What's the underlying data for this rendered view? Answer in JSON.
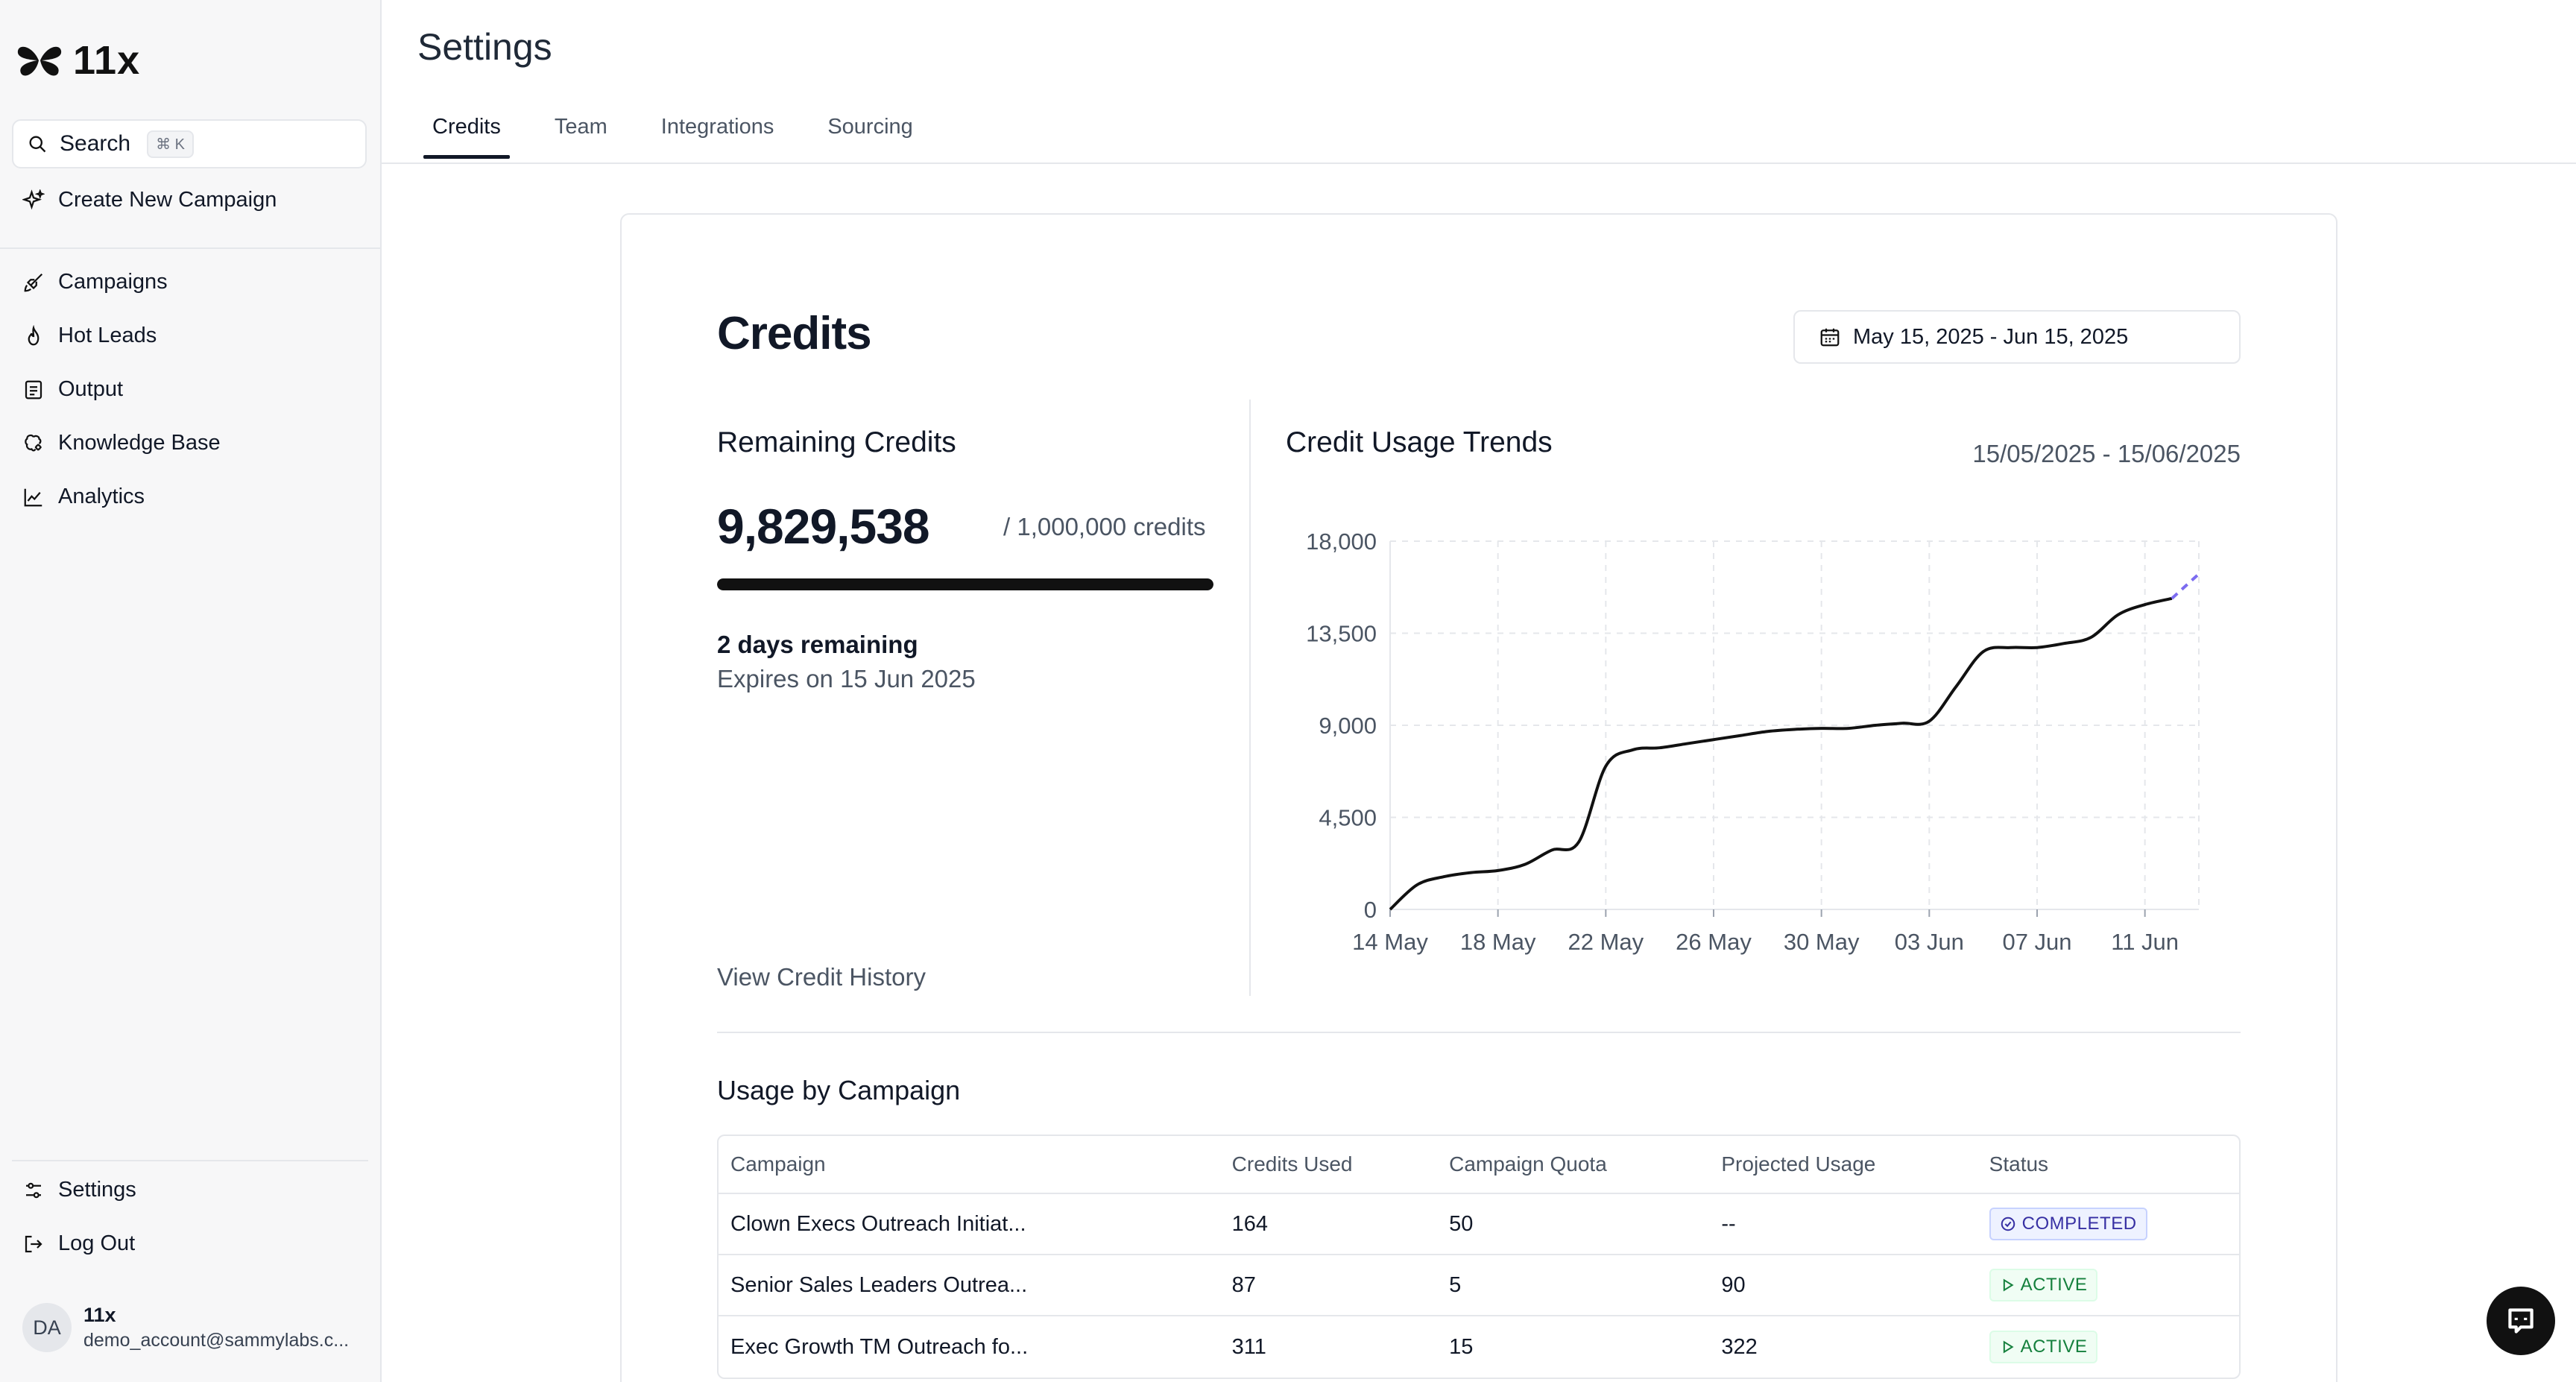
{
  "brand": {
    "name": "11x"
  },
  "sidebar": {
    "search_label": "Search",
    "search_shortcut": "⌘ K",
    "create_label": "Create New Campaign",
    "nav": [
      {
        "label": "Campaigns",
        "icon": "rocket-icon"
      },
      {
        "label": "Hot Leads",
        "icon": "flame-icon"
      },
      {
        "label": "Output",
        "icon": "document-icon"
      },
      {
        "label": "Knowledge Base",
        "icon": "brain-icon"
      },
      {
        "label": "Analytics",
        "icon": "chart-line-icon"
      }
    ],
    "settings_label": "Settings",
    "logout_label": "Log Out",
    "user": {
      "initials": "DA",
      "org": "11x",
      "email": "demo_account@sammylabs.c..."
    }
  },
  "header": {
    "title": "Settings",
    "tabs": [
      {
        "label": "Credits",
        "active": true
      },
      {
        "label": "Team",
        "active": false
      },
      {
        "label": "Integrations",
        "active": false
      },
      {
        "label": "Sourcing",
        "active": false
      }
    ]
  },
  "credits": {
    "title": "Credits",
    "date_range": "May 15, 2025 - Jun 15, 2025",
    "remaining_title": "Remaining Credits",
    "remaining_value": "9,829,538",
    "total_label": "/ 1,000,000 credits",
    "progress_fraction": 1.0,
    "days_remaining": "2 days remaining",
    "expires": "Expires on 15 Jun 2025",
    "history_link": "View Credit History",
    "trend_title": "Credit Usage Trends",
    "trend_range": "15/05/2025 - 15/06/2025"
  },
  "chart_data": {
    "type": "line",
    "x": [
      "14 May",
      "15 May",
      "16 May",
      "17 May",
      "18 May",
      "19 May",
      "20 May",
      "21 May",
      "22 May",
      "23 May",
      "24 May",
      "25 May",
      "26 May",
      "27 May",
      "28 May",
      "29 May",
      "30 May",
      "31 May",
      "01 Jun",
      "02 Jun",
      "03 Jun",
      "04 Jun",
      "05 Jun",
      "06 Jun",
      "07 Jun",
      "08 Jun",
      "09 Jun",
      "10 Jun",
      "11 Jun",
      "12 Jun",
      "13 Jun"
    ],
    "series": [
      {
        "values": [
          0,
          1200,
          1600,
          1800,
          1900,
          2200,
          2900,
          3300,
          7000,
          7800,
          7900,
          8100,
          8300,
          8500,
          8700,
          8800,
          8850,
          8850,
          9000,
          9100,
          9200,
          10900,
          12600,
          12800,
          12800,
          13000,
          13300,
          14400,
          14900,
          15200,
          16400
        ],
        "projected_from_index": 29,
        "color": "#111111",
        "projected_color": "#7c6cf0"
      }
    ],
    "x_ticks": [
      "14 May",
      "18 May",
      "22 May",
      "26 May",
      "30 May",
      "03 Jun",
      "07 Jun",
      "11 Jun"
    ],
    "y_ticks": [
      "0",
      "4,500",
      "9,000",
      "13,500",
      "18,000"
    ],
    "ylim": [
      0,
      18000
    ],
    "grid": true
  },
  "usage": {
    "title": "Usage by Campaign",
    "columns": [
      "Campaign",
      "Credits Used",
      "Campaign Quota",
      "Projected Usage",
      "Status"
    ],
    "rows": [
      {
        "campaign": "Clown Execs Outreach Initiat...",
        "credits": "164",
        "quota": "50",
        "projected": "--",
        "status": "COMPLETED"
      },
      {
        "campaign": "Senior Sales Leaders Outrea...",
        "credits": "87",
        "quota": "5",
        "projected": "90",
        "status": "ACTIVE"
      },
      {
        "campaign": "Exec Growth TM Outreach fo...",
        "credits": "311",
        "quota": "15",
        "projected": "322",
        "status": "ACTIVE"
      }
    ]
  }
}
